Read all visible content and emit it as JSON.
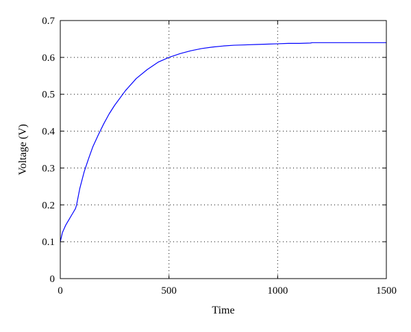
{
  "chart_data": {
    "type": "line",
    "title": "",
    "xlabel": "Time",
    "ylabel": "Voltage (V)",
    "xlim": [
      0,
      1500
    ],
    "ylim": [
      0,
      0.7
    ],
    "xticks": [
      0,
      500,
      1000,
      1500
    ],
    "xtick_labels": [
      "0",
      "500",
      "1000",
      "1500"
    ],
    "yticks": [
      0,
      0.1,
      0.2,
      0.3,
      0.4,
      0.5,
      0.6,
      0.7
    ],
    "ytick_labels": [
      "0",
      "0.1",
      "0.2",
      "0.3",
      "0.4",
      "0.5",
      "0.6",
      "0.7"
    ],
    "grid": true,
    "grid_style": "dotted",
    "legend": false,
    "series": [
      {
        "color": "#0000ff",
        "x": [
          0,
          10,
          25,
          40,
          55,
          70,
          75,
          90,
          110,
          130,
          150,
          175,
          200,
          225,
          250,
          300,
          350,
          400,
          450,
          500,
          550,
          600,
          650,
          700,
          750,
          800,
          850,
          900,
          950,
          1000,
          1050,
          1100,
          1150,
          1160,
          1200,
          1300,
          1400,
          1500
        ],
        "y": [
          0.1,
          0.125,
          0.145,
          0.16,
          0.175,
          0.19,
          0.2,
          0.245,
          0.29,
          0.325,
          0.358,
          0.39,
          0.42,
          0.447,
          0.47,
          0.51,
          0.543,
          0.567,
          0.587,
          0.6,
          0.61,
          0.618,
          0.624,
          0.628,
          0.631,
          0.633,
          0.634,
          0.635,
          0.636,
          0.637,
          0.638,
          0.638,
          0.639,
          0.64,
          0.64,
          0.64,
          0.64,
          0.64
        ]
      }
    ]
  }
}
